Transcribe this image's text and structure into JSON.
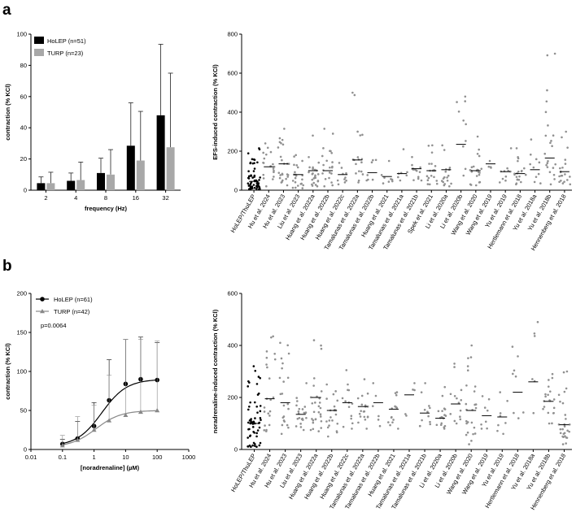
{
  "panels": [
    {
      "label": "a"
    },
    {
      "label": "b"
    }
  ],
  "chart_data": [
    {
      "id": "a-left",
      "type": "bar",
      "categories": [
        "2",
        "4",
        "8",
        "16",
        "32"
      ],
      "series": [
        {
          "name": "HoLEP (n=51)",
          "color": "#000000",
          "values": [
            4.5,
            6,
            11,
            28.5,
            48
          ],
          "sd": [
            4,
            5,
            9.5,
            27.5,
            45.5
          ]
        },
        {
          "name": "TURP (n=23)",
          "color": "#a8a8a8",
          "values": [
            4.5,
            6.5,
            10,
            19,
            27.5
          ],
          "sd": [
            7,
            11.5,
            16,
            31.5,
            47.5
          ]
        }
      ],
      "title": "",
      "xlabel": "frequency (Hz)",
      "ylabel": "contraction (% KCl)",
      "ylim": [
        0,
        100
      ],
      "yticks": [
        "0",
        "20",
        "40",
        "60",
        "80",
        "100"
      ],
      "legend_position": "top-left"
    },
    {
      "id": "a-right",
      "type": "scatter",
      "categories": [
        "HoLEP/ThuLEP",
        "Hu et al. 2024",
        "Hu et al. 2023",
        "Liu et al. 2023",
        "Huang et al. 2022a",
        "Huang et al. 2022b",
        "Huang et al. 2022c",
        "Tamalunas et al. 2022a",
        "Tamalunas et al. 2022b",
        "Huang et al. 2021",
        "Tamalunas et al. 2021a",
        "Tamalunas et al. 2021b",
        "Spek et al. 2021",
        "Li et al. 2020a",
        "Li et al. 2020b",
        "Wang et al. 2020",
        "Wang et al. 2019",
        "Yu et al. 2019",
        "Hertlemann et al. 2018",
        "Yu et al. 2018a",
        "Yu et al. 2018b",
        "Hennenberg et al. 2018"
      ],
      "medians": [
        45,
        120,
        135,
        80,
        100,
        100,
        80,
        155,
        90,
        70,
        85,
        110,
        100,
        105,
        235,
        100,
        135,
        95,
        85,
        105,
        165,
        95
      ],
      "ranges": [
        [
          5,
          215
        ],
        [
          20,
          240
        ],
        [
          25,
          315
        ],
        [
          10,
          180
        ],
        [
          20,
          280
        ],
        [
          20,
          315
        ],
        [
          30,
          140
        ],
        [
          40,
          500
        ],
        [
          50,
          155
        ],
        [
          35,
          150
        ],
        [
          50,
          210
        ],
        [
          50,
          170
        ],
        [
          30,
          230
        ],
        [
          20,
          230
        ],
        [
          75,
          480
        ],
        [
          25,
          275
        ],
        [
          115,
          150
        ],
        [
          40,
          215
        ],
        [
          30,
          215
        ],
        [
          35,
          260
        ],
        [
          30,
          700
        ],
        [
          30,
          300
        ]
      ],
      "point_counts": [
        60,
        20,
        25,
        22,
        25,
        22,
        10,
        18,
        7,
        8,
        7,
        14,
        20,
        18,
        10,
        22,
        4,
        10,
        20,
        10,
        22,
        20
      ],
      "point_color": "#909090",
      "first_point_color": "#000000",
      "title": "",
      "xlabel": "",
      "ylabel": "EFS-induced contraction (% KCl)",
      "ylim": [
        0,
        800
      ],
      "yticks": [
        "0",
        "200",
        "400",
        "600",
        "800"
      ]
    },
    {
      "id": "b-left",
      "type": "line",
      "x": [
        0.1,
        0.3,
        1,
        3,
        10,
        30,
        100
      ],
      "series": [
        {
          "name": "HoLEP (n=61)",
          "color": "#000000",
          "marker": "circle",
          "values": [
            7,
            14,
            30,
            63,
            84,
            90,
            89
          ],
          "sd": [
            6,
            22,
            30,
            52,
            57,
            54,
            48
          ]
        },
        {
          "name": "TURP (n=42)",
          "color": "#888888",
          "marker": "triangle",
          "values": [
            5,
            12,
            25,
            37,
            44,
            48,
            50
          ],
          "sd": [
            13,
            30,
            32,
            58,
            97,
            93,
            89
          ]
        }
      ],
      "annotation": "p=0.0064",
      "title": "",
      "xlabel": "[noradrenaline] (µM)",
      "ylabel": "contraction (% KCl)",
      "xscale": "log",
      "xlim": [
        0.01,
        1000
      ],
      "xticks": [
        "0.01",
        "0.1",
        "1",
        "10",
        "100",
        "1000"
      ],
      "ylim": [
        0,
        200
      ],
      "yticks": [
        "0",
        "50",
        "100",
        "150",
        "200"
      ],
      "legend_position": "top-left"
    },
    {
      "id": "b-right",
      "type": "scatter",
      "categories": [
        "HoLEP/ThuLEP",
        "Hu et al. 2024",
        "Hu et al. 2023",
        "Liu et al. 2023",
        "Huang et al. 2022a",
        "Huang et al. 2022b",
        "Huang et al. 2022c",
        "Tamalunas et al. 2022a",
        "Tamalunas et al. 2022b",
        "Huang et al. 2021",
        "Tamalunas et al. 2021a",
        "Tamalunas et al. 2021b",
        "Li et al. 2020a",
        "Li et al. 2020b",
        "Wang et al. 2020",
        "Wang et al. 2019",
        "Yu et al. 2019",
        "Hertlemann et al. 2018",
        "Yu et al. 2018a",
        "Yu et al. 2018b",
        "Hennenberg et al. 2018"
      ],
      "medians": [
        100,
        195,
        180,
        135,
        200,
        150,
        180,
        165,
        180,
        155,
        210,
        140,
        120,
        175,
        150,
        130,
        125,
        220,
        260,
        185,
        95
      ],
      "ranges": [
        [
          10,
          320
        ],
        [
          70,
          435
        ],
        [
          60,
          410
        ],
        [
          75,
          255
        ],
        [
          70,
          420
        ],
        [
          50,
          250
        ],
        [
          80,
          305
        ],
        [
          80,
          270
        ],
        [
          90,
          255
        ],
        [
          80,
          220
        ],
        [
          130,
          255
        ],
        [
          90,
          255
        ],
        [
          80,
          240
        ],
        [
          100,
          330
        ],
        [
          20,
          400
        ],
        [
          80,
          205
        ],
        [
          60,
          220
        ],
        [
          120,
          395
        ],
        [
          140,
          490
        ],
        [
          100,
          290
        ],
        [
          20,
          300
        ]
      ],
      "point_counts": [
        60,
        22,
        22,
        22,
        28,
        22,
        14,
        20,
        6,
        14,
        5,
        12,
        18,
        14,
        25,
        8,
        8,
        8,
        6,
        20,
        28
      ],
      "point_color": "#909090",
      "first_point_color": "#000000",
      "title": "",
      "xlabel": "",
      "ylabel": "noradrenaline-induced contraction (% KCl)",
      "ylim": [
        0,
        600
      ],
      "yticks": [
        "0",
        "200",
        "400",
        "600"
      ]
    }
  ]
}
